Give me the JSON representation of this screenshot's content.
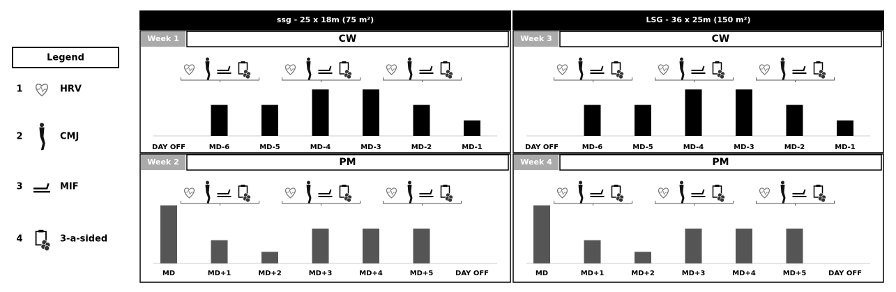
{
  "columns": [
    {
      "header": "ssg - 25 x 18m (75 m²)"
    },
    {
      "header": "LSG - 36 x 25m (150 m²)"
    }
  ],
  "legend": {
    "title": "Legend",
    "items": [
      {
        "number": "1",
        "label": "HRV"
      },
      {
        "number": "2",
        "label": "CMJ"
      },
      {
        "number": "3",
        "label": "MIF"
      },
      {
        "number": "4",
        "label": "3-a-sided"
      }
    ]
  },
  "chart_data": [
    {
      "type": "bar",
      "week": "Week 1",
      "title": "CW",
      "categories": [
        "DAY OFF",
        "MD-6",
        "MD-5",
        "MD-4",
        "MD-3",
        "MD-2",
        "MD-1"
      ],
      "values": [
        0,
        2,
        2,
        3,
        3,
        2,
        1
      ],
      "color": "#000000",
      "ylim": [
        0,
        4.5
      ]
    },
    {
      "type": "bar",
      "week": "Week 2",
      "title": "PM",
      "categories": [
        "MD",
        "MD+1",
        "MD+2",
        "MD+3",
        "MD+4",
        "MD+5",
        "DAY OFF"
      ],
      "values": [
        5,
        2,
        1,
        3,
        3,
        3,
        0
      ],
      "color": "#555555",
      "ylim": [
        0,
        6
      ]
    },
    {
      "type": "bar",
      "week": "Week 3",
      "title": "CW",
      "categories": [
        "DAY OFF",
        "MD-6",
        "MD-5",
        "MD-4",
        "MD-3",
        "MD-2",
        "MD-1"
      ],
      "values": [
        0,
        2,
        2,
        3,
        3,
        2,
        1
      ],
      "color": "#000000",
      "ylim": [
        0,
        4.5
      ]
    },
    {
      "type": "bar",
      "week": "Week 4",
      "title": "PM",
      "categories": [
        "MD",
        "MD+1",
        "MD+2",
        "MD+3",
        "MD+4",
        "MD+5",
        "DAY OFF"
      ],
      "values": [
        5,
        2,
        1,
        3,
        3,
        3,
        0
      ],
      "color": "#555555",
      "ylim": [
        0,
        6
      ]
    }
  ]
}
